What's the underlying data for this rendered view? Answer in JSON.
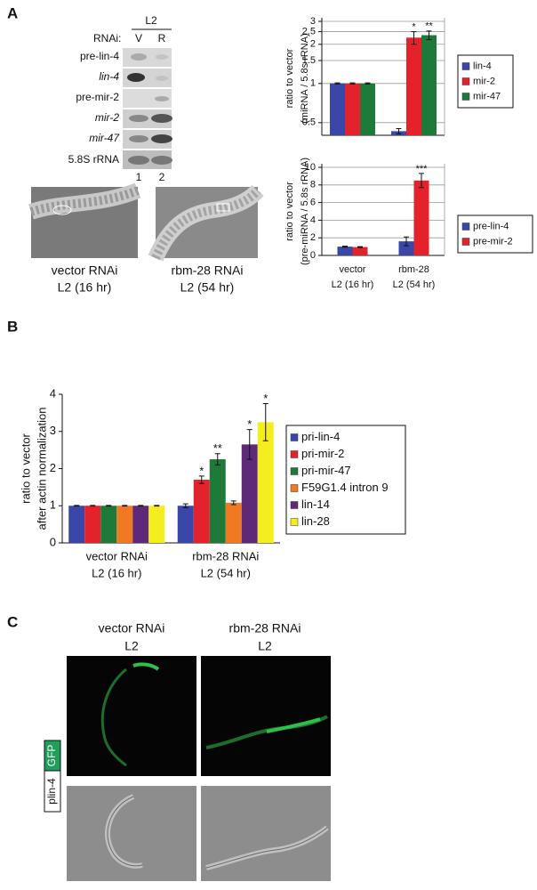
{
  "panel_labels": [
    "A",
    "B",
    "C"
  ],
  "blot": {
    "stage": "L2",
    "rnai_label": "RNAi:",
    "lanes": [
      "V",
      "R"
    ],
    "rows": [
      "pre-lin-4",
      "lin-4",
      "pre-mir-2",
      "mir-2",
      "mir-47",
      "5.8S rRNA"
    ],
    "lane_numbers": [
      "1",
      "2"
    ]
  },
  "micrographs_a": [
    {
      "caption": [
        "vector RNAi",
        "L2 (16 hr)"
      ]
    },
    {
      "caption": [
        "rbm-28 RNAi",
        "L2 (54 hr)"
      ]
    }
  ],
  "chart_data": [
    {
      "type": "bar",
      "log_scale": true,
      "grid": true,
      "ylabel": [
        "ratio to vector",
        "(miRNA / 5.8s rRNA)"
      ],
      "categories": [
        null,
        null
      ],
      "ylim": [
        0.4,
        3
      ],
      "yticks": [
        0.5,
        1,
        1.5,
        2,
        2.5,
        3
      ],
      "series": [
        {
          "name": "lin-4",
          "color": "#3a46a8",
          "values": [
            1,
            0.43
          ],
          "errors": [
            0.01,
            0.02
          ],
          "annotations": [
            null,
            null
          ]
        },
        {
          "name": "mir-2",
          "color": "#e3222b",
          "values": [
            1,
            2.25
          ],
          "errors": [
            0.01,
            0.25
          ],
          "annotations": [
            null,
            "*"
          ]
        },
        {
          "name": "mir-47",
          "color": "#1f7a3a",
          "values": [
            1,
            2.35
          ],
          "errors": [
            0.01,
            0.18
          ],
          "annotations": [
            null,
            "**"
          ]
        }
      ]
    },
    {
      "type": "bar",
      "log_scale": false,
      "grid": true,
      "ylabel": [
        "ratio to vector",
        "(pre-miRNA / 5.8s rRNA)"
      ],
      "categories": [
        [
          "vector",
          "L2 (16 hr)"
        ],
        [
          "rbm-28",
          "L2 (54 hr)"
        ]
      ],
      "ylim": [
        0,
        10
      ],
      "yticks": [
        0,
        2,
        4,
        6,
        8,
        10
      ],
      "series": [
        {
          "name": "pre-lin-4",
          "color": "#3a46a8",
          "values": [
            1,
            1.6
          ],
          "errors": [
            0.05,
            0.5
          ],
          "annotations": [
            null,
            null
          ]
        },
        {
          "name": "pre-mir-2",
          "color": "#e3222b",
          "values": [
            0.95,
            8.5
          ],
          "errors": [
            0.05,
            0.8
          ],
          "annotations": [
            null,
            "***"
          ]
        }
      ]
    },
    {
      "type": "bar",
      "log_scale": false,
      "grid": false,
      "ylabel": [
        "ratio to vector",
        "after actin normalization"
      ],
      "categories": [
        [
          "vector RNAi",
          "L2 (16 hr)"
        ],
        [
          "rbm-28 RNAi",
          "L2 (54 hr)"
        ]
      ],
      "ylim": [
        0,
        4
      ],
      "yticks": [
        0,
        1,
        2,
        3,
        4
      ],
      "series": [
        {
          "name": "pri-lin-4",
          "color": "#3a46a8",
          "values": [
            1,
            1.0
          ],
          "errors": [
            0.01,
            0.05
          ],
          "annotations": [
            null,
            null
          ]
        },
        {
          "name": "pri-mir-2",
          "color": "#e3222b",
          "values": [
            1,
            1.7
          ],
          "errors": [
            0.01,
            0.1
          ],
          "annotations": [
            null,
            "*"
          ]
        },
        {
          "name": "pri-mir-47",
          "color": "#1f7a3a",
          "values": [
            1,
            2.25
          ],
          "errors": [
            0.01,
            0.15
          ],
          "annotations": [
            null,
            "**"
          ]
        },
        {
          "name": "F59G1.4 intron 9",
          "color": "#f07a22",
          "values": [
            1,
            1.08
          ],
          "errors": [
            0.01,
            0.05
          ],
          "annotations": [
            null,
            null
          ]
        },
        {
          "name": "lin-14",
          "color": "#5e2a78",
          "values": [
            1,
            2.65
          ],
          "errors": [
            0.01,
            0.4
          ],
          "annotations": [
            null,
            "*"
          ]
        },
        {
          "name": "lin-28",
          "color": "#f5ee1e",
          "values": [
            1,
            3.25
          ],
          "errors": [
            0.01,
            0.5
          ],
          "annotations": [
            null,
            "*"
          ]
        }
      ]
    }
  ],
  "panel_c": {
    "columns": [
      [
        "vector RNAi",
        "L2"
      ],
      [
        "rbm-28 RNAi",
        "L2"
      ]
    ],
    "reporter": [
      "plin-4",
      "GFP"
    ]
  }
}
